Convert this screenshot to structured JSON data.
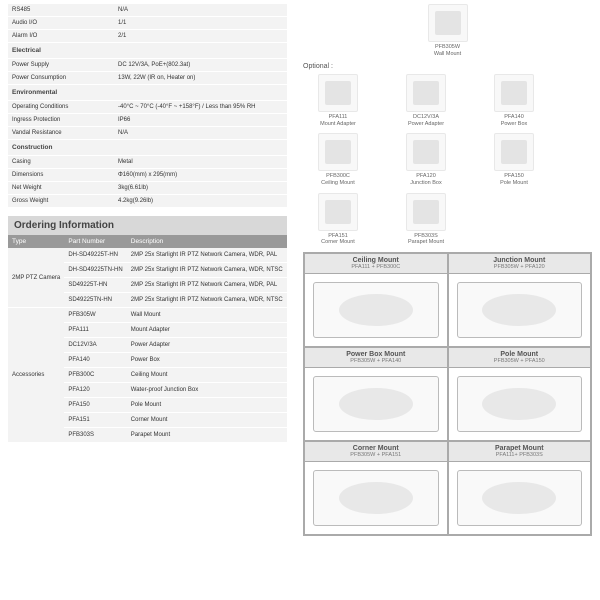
{
  "specs": [
    {
      "k": "RS485",
      "v": "N/A"
    },
    {
      "k": "Audio I/O",
      "v": "1/1"
    },
    {
      "k": "Alarm I/O",
      "v": "2/1"
    }
  ],
  "sections": [
    {
      "title": "Electrical",
      "rows": [
        {
          "k": "Power Supply",
          "v": "DC 12V/3A, PoE+(802.3at)"
        },
        {
          "k": "Power Consumption",
          "v": "13W, 22W (IR on, Heater on)"
        }
      ]
    },
    {
      "title": "Environmental",
      "rows": [
        {
          "k": "Operating Conditions",
          "v": "-40°C ~ 70°C (-40°F ~ +158°F) / Less than 95% RH"
        },
        {
          "k": "Ingress Protection",
          "v": "IP66"
        },
        {
          "k": "Vandal Resistance",
          "v": "N/A"
        }
      ]
    },
    {
      "title": "Construction",
      "rows": [
        {
          "k": "Casing",
          "v": "Metal"
        },
        {
          "k": "Dimensions",
          "v": "Φ160(mm) x 295(mm)"
        },
        {
          "k": "Net Weight",
          "v": "3kg(6.61lb)"
        },
        {
          "k": "Gross Weight",
          "v": "4.2kg(9.26lb)"
        }
      ]
    }
  ],
  "ordering_header": "Ordering Information",
  "order_head": {
    "type": "Type",
    "pn": "Part Number",
    "desc": "Description"
  },
  "camera_type": "2MP PTZ Camera",
  "camera_rows": [
    {
      "pn": "DH-SD49225T-HN",
      "d": "2MP 25x Starlight IR PTZ Network Camera, WDR, PAL"
    },
    {
      "pn": "DH-SD49225TN-HN",
      "d": "2MP 25x Starlight IR PTZ Network Camera, WDR, NTSC"
    },
    {
      "pn": "SD49225T-HN",
      "d": "2MP 25x Starlight IR PTZ Network Camera, WDR, PAL"
    },
    {
      "pn": "SD49225TN-HN",
      "d": "2MP 25x Starlight IR PTZ Network Camera, WDR, NTSC"
    }
  ],
  "acc_type": "Accessories",
  "acc_rows": [
    {
      "pn": "PFB305W",
      "d": "Wall Mount"
    },
    {
      "pn": "PFA111",
      "d": "Mount Adapter"
    },
    {
      "pn": "DC12V/3A",
      "d": "Power Adapter"
    },
    {
      "pn": "PFA140",
      "d": "Power Box"
    },
    {
      "pn": "PFB300C",
      "d": "Ceiling Mount"
    },
    {
      "pn": "PFA120",
      "d": "Water-proof Junction Box"
    },
    {
      "pn": "PFA150",
      "d": "Pole Mount"
    },
    {
      "pn": "PFA151",
      "d": "Corner Mount"
    },
    {
      "pn": "PFB303S",
      "d": "Parapet Mount"
    }
  ],
  "top_acc": {
    "code": "PFB305W",
    "name": "Wall Mount"
  },
  "optional": "Optional :",
  "opt_items": [
    {
      "code": "PFA111",
      "name": "Mount Adapter"
    },
    {
      "code": "DC12V/3A",
      "name": "Power Adapter"
    },
    {
      "code": "PFA140",
      "name": "Power Box"
    },
    {
      "code": "PFB300C",
      "name": "Ceiling Mount"
    },
    {
      "code": "PFA120",
      "name": "Junction Box"
    },
    {
      "code": "PFA150",
      "name": "Pole Mount"
    },
    {
      "code": "PFA151",
      "name": "Corner Mount"
    },
    {
      "code": "PFB303S",
      "name": "Parapet Mount"
    }
  ],
  "mounts": [
    {
      "t": "Ceiling Mount",
      "s": "PFA111 + PFB300C"
    },
    {
      "t": "Junction Mount",
      "s": "PFB305W + PFA120"
    },
    {
      "t": "Power Box Mount",
      "s": "PFB305W + PFA140"
    },
    {
      "t": "Pole Mount",
      "s": "PFB305W + PFA150"
    },
    {
      "t": "Corner Mount",
      "s": "PFB305W + PFA151"
    },
    {
      "t": "Parapet Mount",
      "s": "PFA111+ PFB303S"
    }
  ]
}
